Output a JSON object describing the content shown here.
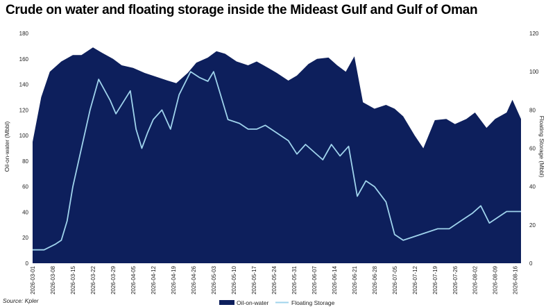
{
  "title": "Crude on water and floating storage inside the Mideast Gulf and Gulf of Oman",
  "source": "Source: Kpler",
  "chart_data": {
    "type": "area",
    "title": "Crude on water and floating storage inside the Mideast Gulf and Gulf of Oman",
    "ylabel_left": "Oil-on-water (Mbbl)",
    "ylabel_right": "Floating Storage (Mbbl)",
    "ylim_left": [
      0,
      180
    ],
    "yticks_left": [
      "0",
      "20",
      "40",
      "60",
      "80",
      "100",
      "120",
      "140",
      "160",
      "180"
    ],
    "ylim_right": [
      0,
      120
    ],
    "yticks_right": [
      "0",
      "20",
      "40",
      "60",
      "80",
      "100",
      "120"
    ],
    "xlim": [
      "2026-03-01",
      "2026-08-18"
    ],
    "xticks": [
      "2026-03-01",
      "2026-03-08",
      "2026-03-15",
      "2026-03-22",
      "2026-03-29",
      "2026-04-05",
      "2026-04-12",
      "2026-04-19",
      "2026-04-26",
      "2026-05-03",
      "2026-05-10",
      "2026-05-17",
      "2026-05-24",
      "2026-05-31",
      "2026-06-07",
      "2026-06-14",
      "2026-06-21",
      "2026-06-28",
      "2026-07-05",
      "2026-07-12",
      "2026-07-19",
      "2026-07-26",
      "2026-08-02",
      "2026-08-09",
      "2026-08-16"
    ],
    "legend_position": "bottom",
    "grid": false,
    "series": [
      {
        "name": "Oil-on-water",
        "axis": "left",
        "type": "area",
        "color": "#0d1f5c",
        "x": [
          "2026-03-01",
          "2026-03-04",
          "2026-03-07",
          "2026-03-11",
          "2026-03-15",
          "2026-03-18",
          "2026-03-22",
          "2026-03-25",
          "2026-03-29",
          "2026-04-01",
          "2026-04-05",
          "2026-04-09",
          "2026-04-13",
          "2026-04-17",
          "2026-04-20",
          "2026-04-24",
          "2026-04-27",
          "2026-05-01",
          "2026-05-04",
          "2026-05-07",
          "2026-05-11",
          "2026-05-15",
          "2026-05-18",
          "2026-05-22",
          "2026-05-25",
          "2026-05-29",
          "2026-06-01",
          "2026-06-05",
          "2026-06-08",
          "2026-06-12",
          "2026-06-15",
          "2026-06-18",
          "2026-06-21",
          "2026-06-24",
          "2026-06-28",
          "2026-07-02",
          "2026-07-05",
          "2026-07-08",
          "2026-07-12",
          "2026-07-15",
          "2026-07-19",
          "2026-07-23",
          "2026-07-26",
          "2026-07-30",
          "2026-08-02",
          "2026-08-06",
          "2026-08-09",
          "2026-08-13",
          "2026-08-15",
          "2026-08-18"
        ],
        "values": [
          95,
          130,
          150,
          158,
          163,
          163,
          169,
          165,
          160,
          155,
          153,
          149,
          146,
          143,
          141,
          149,
          157,
          161,
          166,
          164,
          158,
          155,
          158,
          153,
          149,
          143,
          147,
          156,
          160,
          161,
          155,
          150,
          162,
          126,
          121,
          124,
          121,
          115,
          100,
          90,
          112,
          113,
          109,
          113,
          118,
          106,
          113,
          118,
          128,
          113
        ]
      },
      {
        "name": "Floating Storage",
        "axis": "right",
        "type": "line",
        "color": "#9fd3ec",
        "x": [
          "2026-03-01",
          "2026-03-05",
          "2026-03-09",
          "2026-03-11",
          "2026-03-13",
          "2026-03-15",
          "2026-03-18",
          "2026-03-21",
          "2026-03-24",
          "2026-03-28",
          "2026-03-30",
          "2026-04-04",
          "2026-04-06",
          "2026-04-08",
          "2026-04-10",
          "2026-04-12",
          "2026-04-15",
          "2026-04-18",
          "2026-04-21",
          "2026-04-25",
          "2026-04-28",
          "2026-05-01",
          "2026-05-03",
          "2026-05-05",
          "2026-05-08",
          "2026-05-12",
          "2026-05-15",
          "2026-05-18",
          "2026-05-21",
          "2026-05-25",
          "2026-05-29",
          "2026-06-01",
          "2026-06-04",
          "2026-06-07",
          "2026-06-10",
          "2026-06-13",
          "2026-06-16",
          "2026-06-19",
          "2026-06-22",
          "2026-06-25",
          "2026-06-28",
          "2026-07-02",
          "2026-07-05",
          "2026-07-08",
          "2026-07-12",
          "2026-07-16",
          "2026-07-20",
          "2026-07-24",
          "2026-07-28",
          "2026-08-01",
          "2026-08-04",
          "2026-08-07",
          "2026-08-10",
          "2026-08-13",
          "2026-08-18"
        ],
        "values": [
          7,
          7,
          10,
          12,
          22,
          40,
          60,
          80,
          96,
          85,
          78,
          90,
          70,
          60,
          68,
          75,
          80,
          70,
          88,
          100,
          97,
          95,
          100,
          90,
          75,
          73,
          70,
          70,
          72,
          68,
          64,
          57,
          62,
          58,
          54,
          62,
          56,
          61,
          35,
          43,
          40,
          32,
          15,
          12,
          14,
          16,
          18,
          18,
          22,
          26,
          30,
          21,
          24,
          27,
          27
        ]
      }
    ]
  }
}
